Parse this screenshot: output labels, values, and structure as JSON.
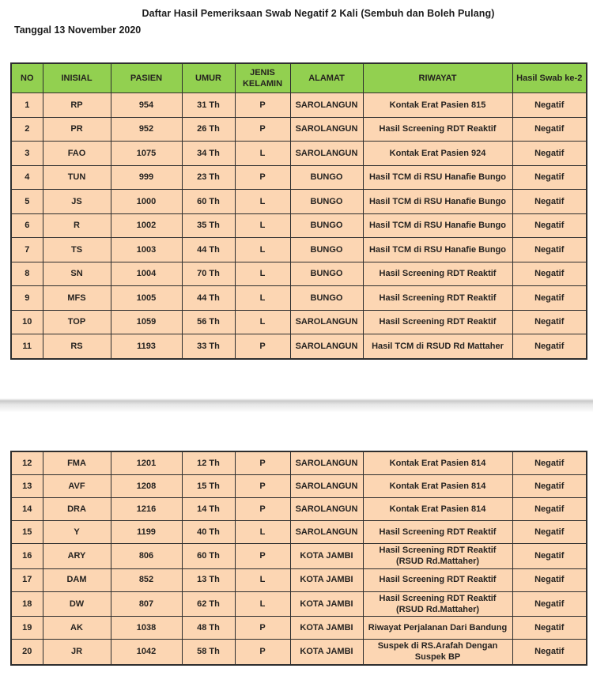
{
  "title": "Daftar Hasil Pemeriksaan Swab Negatif 2 Kali (Sembuh dan Boleh Pulang)",
  "date_label": "Tanggal 13 November 2020",
  "colors": {
    "header_bg": "#92D050",
    "row_bg": "#FCD6B3",
    "border": "#2E2E2E",
    "page_separator": "#E0E0E0"
  },
  "table": {
    "columns": [
      "NO",
      "INISIAL",
      "PASIEN",
      "UMUR",
      "JENIS KELAMIN",
      "ALAMAT",
      "RIWAYAT",
      "Hasil Swab ke-2"
    ],
    "column_keys": [
      "no",
      "inisial",
      "pasien",
      "umur",
      "jenis-kelamin",
      "alamat",
      "riwayat",
      "hasil-swab-ke-2"
    ],
    "page1_rows": [
      [
        "1",
        "RP",
        "954",
        "31 Th",
        "P",
        "SAROLANGUN",
        "Kontak Erat Pasien 815",
        "Negatif"
      ],
      [
        "2",
        "PR",
        "952",
        "26 Th",
        "P",
        "SAROLANGUN",
        "Hasil Screening RDT Reaktif",
        "Negatif"
      ],
      [
        "3",
        "FAO",
        "1075",
        "34 Th",
        "L",
        "SAROLANGUN",
        "Kontak Erat Pasien 924",
        "Negatif"
      ],
      [
        "4",
        "TUN",
        "999",
        "23 Th",
        "P",
        "BUNGO",
        "Hasil TCM di RSU Hanafie Bungo",
        "Negatif"
      ],
      [
        "5",
        "JS",
        "1000",
        "60 Th",
        "L",
        "BUNGO",
        "Hasil TCM di RSU Hanafie Bungo",
        "Negatif"
      ],
      [
        "6",
        "R",
        "1002",
        "35 Th",
        "L",
        "BUNGO",
        "Hasil TCM di RSU Hanafie Bungo",
        "Negatif"
      ],
      [
        "7",
        "TS",
        "1003",
        "44 Th",
        "L",
        "BUNGO",
        "Hasil TCM di RSU Hanafie Bungo",
        "Negatif"
      ],
      [
        "8",
        "SN",
        "1004",
        "70 Th",
        "L",
        "BUNGO",
        "Hasil Screening RDT Reaktif",
        "Negatif"
      ],
      [
        "9",
        "MFS",
        "1005",
        "44 Th",
        "L",
        "BUNGO",
        "Hasil Screening RDT Reaktif",
        "Negatif"
      ],
      [
        "10",
        "TOP",
        "1059",
        "56 Th",
        "L",
        "SAROLANGUN",
        "Hasil Screening RDT Reaktif",
        "Negatif"
      ],
      [
        "11",
        "RS",
        "1193",
        "33 Th",
        "P",
        "SAROLANGUN",
        "Hasil TCM di RSUD Rd Mattaher",
        "Negatif"
      ]
    ],
    "page2_rows": [
      [
        "12",
        "FMA",
        "1201",
        "12 Th",
        "P",
        "SAROLANGUN",
        "Kontak Erat Pasien 814",
        "Negatif"
      ],
      [
        "13",
        "AVF",
        "1208",
        "15 Th",
        "P",
        "SAROLANGUN",
        "Kontak Erat Pasien 814",
        "Negatif"
      ],
      [
        "14",
        "DRA",
        "1216",
        "14 Th",
        "P",
        "SAROLANGUN",
        "Kontak Erat Pasien 814",
        "Negatif"
      ],
      [
        "15",
        "Y",
        "1199",
        "40 Th",
        "L",
        "SAROLANGUN",
        "Hasil Screening RDT Reaktif",
        "Negatif"
      ],
      [
        "16",
        "ARY",
        "806",
        "60 Th",
        "P",
        "KOTA JAMBI",
        "Hasil Screening RDT Reaktif  (RSUD Rd.Mattaher)",
        "Negatif"
      ],
      [
        "17",
        "DAM",
        "852",
        "13 Th",
        "L",
        "KOTA JAMBI",
        "Hasil Screening RDT Reaktif",
        "Negatif"
      ],
      [
        "18",
        "DW",
        "807",
        "62 Th",
        "L",
        "KOTA JAMBI",
        "Hasil Screening RDT Reaktif  (RSUD Rd.Mattaher)",
        "Negatif"
      ],
      [
        "19",
        "AK",
        "1038",
        "48 Th",
        "P",
        "KOTA JAMBI",
        "Riwayat Perjalanan Dari Bandung",
        "Negatif"
      ],
      [
        "20",
        "JR",
        "1042",
        "58 Th",
        "P",
        "KOTA JAMBI",
        "Suspek di RS.Arafah Dengan Suspek BP",
        "Negatif"
      ]
    ]
  }
}
